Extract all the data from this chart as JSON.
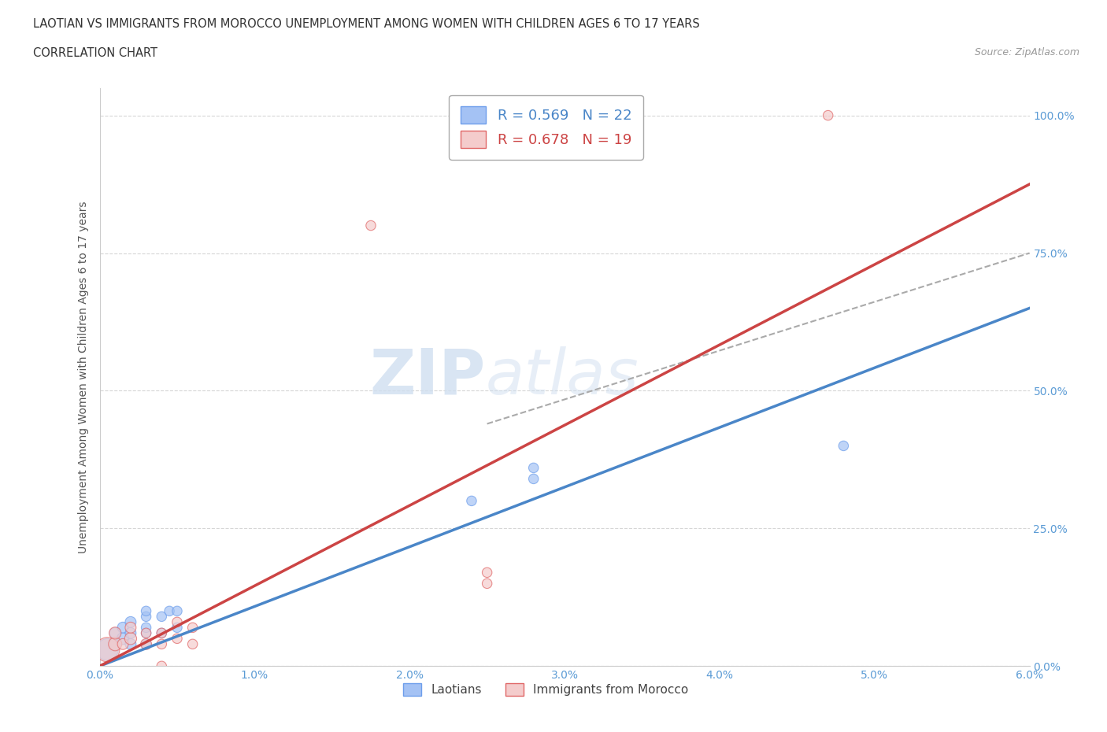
{
  "title_line1": "LAOTIAN VS IMMIGRANTS FROM MOROCCO UNEMPLOYMENT AMONG WOMEN WITH CHILDREN AGES 6 TO 17 YEARS",
  "title_line2": "CORRELATION CHART",
  "source_text": "Source: ZipAtlas.com",
  "ylabel": "Unemployment Among Women with Children Ages 6 to 17 years",
  "xlim": [
    0.0,
    0.06
  ],
  "ylim": [
    0.0,
    1.05
  ],
  "xticks": [
    0.0,
    0.01,
    0.02,
    0.03,
    0.04,
    0.05,
    0.06
  ],
  "xticklabels": [
    "0.0%",
    "1.0%",
    "2.0%",
    "3.0%",
    "4.0%",
    "5.0%",
    "6.0%"
  ],
  "yticks": [
    0.0,
    0.25,
    0.5,
    0.75,
    1.0
  ],
  "yticklabels": [
    "0.0%",
    "25.0%",
    "50.0%",
    "75.0%",
    "100.0%"
  ],
  "blue_color": "#a4c2f4",
  "pink_color": "#f4cccc",
  "blue_edge_color": "#6d9eeb",
  "pink_edge_color": "#e06666",
  "blue_line_color": "#4a86c8",
  "pink_line_color": "#cc4444",
  "blue_R": 0.569,
  "blue_N": 22,
  "pink_R": 0.678,
  "pink_N": 19,
  "legend_label_blue": "Laotians",
  "legend_label_pink": "Immigrants from Morocco",
  "grid_color": "#cccccc",
  "background_color": "#ffffff",
  "axis_color": "#cccccc",
  "blue_scatter_x": [
    0.0005,
    0.001,
    0.001,
    0.0015,
    0.0015,
    0.002,
    0.002,
    0.002,
    0.003,
    0.003,
    0.003,
    0.003,
    0.003,
    0.004,
    0.004,
    0.0045,
    0.005,
    0.005,
    0.024,
    0.028,
    0.028,
    0.048
  ],
  "blue_scatter_y": [
    0.03,
    0.04,
    0.06,
    0.05,
    0.07,
    0.04,
    0.06,
    0.08,
    0.04,
    0.06,
    0.07,
    0.09,
    0.1,
    0.06,
    0.09,
    0.1,
    0.07,
    0.1,
    0.3,
    0.34,
    0.36,
    0.4
  ],
  "pink_scatter_x": [
    0.0005,
    0.001,
    0.001,
    0.0015,
    0.002,
    0.002,
    0.003,
    0.003,
    0.004,
    0.004,
    0.004,
    0.005,
    0.005,
    0.006,
    0.006,
    0.0175,
    0.025,
    0.025,
    0.047
  ],
  "pink_scatter_y": [
    0.03,
    0.04,
    0.06,
    0.04,
    0.05,
    0.07,
    0.04,
    0.06,
    0.04,
    0.06,
    0.0,
    0.05,
    0.08,
    0.04,
    0.07,
    0.8,
    0.15,
    0.17,
    1.0
  ],
  "blue_scatter_sizes": [
    400,
    120,
    100,
    120,
    100,
    100,
    100,
    100,
    80,
    80,
    80,
    80,
    80,
    80,
    80,
    80,
    80,
    80,
    80,
    80,
    80,
    80
  ],
  "pink_scatter_sizes": [
    500,
    150,
    120,
    100,
    120,
    100,
    100,
    80,
    80,
    80,
    80,
    80,
    80,
    80,
    80,
    80,
    80,
    80,
    80
  ],
  "blue_line_x0": 0.0,
  "blue_line_y0": 0.0,
  "blue_line_x1": 0.06,
  "blue_line_y1": 0.65,
  "pink_line_x0": 0.0,
  "pink_line_y0": 0.0,
  "pink_line_x1": 0.06,
  "pink_line_y1": 0.875,
  "dash_line_x0": 0.025,
  "dash_line_y0": 0.44,
  "dash_line_x1": 0.06,
  "dash_line_y1": 0.75
}
